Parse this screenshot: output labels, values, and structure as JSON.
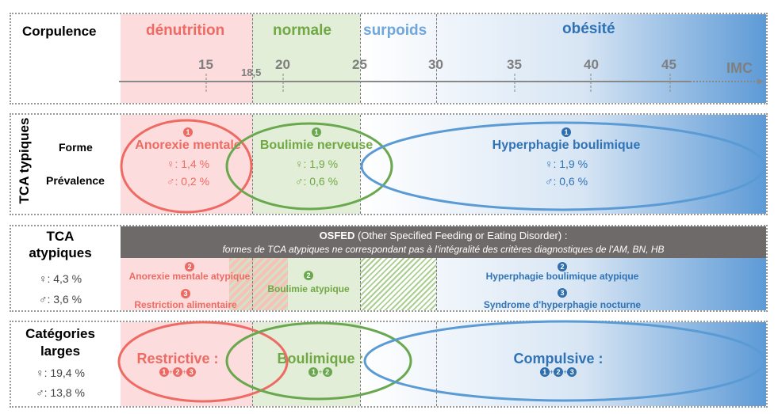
{
  "row1": {
    "label": "Corpulence",
    "zones": [
      "dénutrition",
      "normale",
      "surpoids",
      "obésité"
    ],
    "ticks": [
      "15",
      "18,5",
      "20",
      "25",
      "30",
      "35",
      "40",
      "45"
    ],
    "axis_label": "IMC"
  },
  "row2": {
    "label": "TCA typiques",
    "forme": "Forme",
    "prevalence": "Prévalence",
    "an": {
      "num": "1",
      "name": "Anorexie mentale",
      "f": "♀: 1,4 %",
      "m": "♂: 0,2 %"
    },
    "bn": {
      "num": "1",
      "name": "Boulimie nerveuse",
      "f": "♀: 1,9 %",
      "m": "♂: 0,6 %"
    },
    "hb": {
      "num": "1",
      "name": "Hyperphagie boulimique",
      "f": "♀: 1,9 %",
      "m": "♂: 0,6 %"
    }
  },
  "row3": {
    "label1": "TCA",
    "label2": "atypiques",
    "f": "♀: 4,3 %",
    "m": "♂: 3,6 %",
    "osfed_bold": "OSFED",
    "osfed_rest": " (Other Specified Feeding or Eating Disorder) :",
    "osfed_sub": "formes de TCA atypiques ne correspondant pas à l'intégralité  des critères diagnostiques de l'AM, BN, HB",
    "items": [
      {
        "num": "2",
        "name": "Anorexie mentale atypique"
      },
      {
        "num": "3",
        "name": "Restriction alimentaire"
      },
      {
        "num": "2",
        "name": "Boulimie atypique"
      },
      {
        "num": "2",
        "name": "Hyperphagie boulimique atypique"
      },
      {
        "num": "3",
        "name": "Syndrome d'hyperphagie nocturne"
      }
    ]
  },
  "row4": {
    "label1": "Catégories",
    "label2": "larges",
    "f": "♀: 19,4 %",
    "m": "♂: 13,8 %",
    "restrictive": "Restrictive :",
    "restrictive_nums": [
      "1",
      "2",
      "3"
    ],
    "boulimique": "Boulimique :",
    "boulimique_nums": [
      "1",
      "2"
    ],
    "compulsive": "Compulsive :",
    "compulsive_nums": [
      "1",
      "2",
      "3"
    ],
    "plus": "+"
  },
  "colors": {
    "red": "#ee6b64",
    "green": "#70a844",
    "blue": "#2f72b5",
    "osfed": "#6e6a69"
  }
}
